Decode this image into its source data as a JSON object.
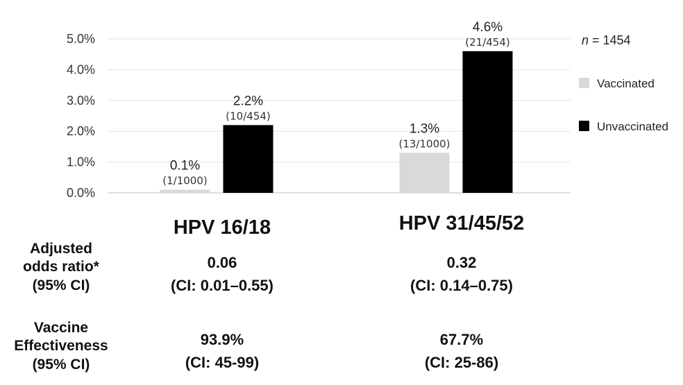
{
  "chart_data": {
    "type": "bar",
    "categories": [
      "HPV 16/18",
      "HPV 31/45/52"
    ],
    "series": [
      {
        "name": "Vaccinated",
        "color": "#d9d9d9",
        "values": [
          0.1,
          1.3
        ],
        "labels": [
          "0.1%",
          "1.3%"
        ],
        "fractions": [
          "(1/1000)",
          "(13/1000)"
        ]
      },
      {
        "name": "Unvaccinated",
        "color": "#000000",
        "values": [
          2.2,
          4.6
        ],
        "labels": [
          "2.2%",
          "4.6%"
        ],
        "fractions": [
          "(10/454)",
          "(21/454)"
        ]
      }
    ],
    "yticks": [
      "0.0%",
      "1.0%",
      "2.0%",
      "3.0%",
      "4.0%",
      "5.0%"
    ],
    "ylim": [
      0,
      5
    ],
    "legend_position": "right",
    "grid": true
  },
  "n_label": {
    "var": "n",
    "text": " = 1454"
  },
  "stats": {
    "row1_label": [
      "Adjusted",
      "odds ratio*",
      "(95% CI)"
    ],
    "row2_label": [
      "Vaccine",
      "Effectiveness",
      "(95% CI)"
    ],
    "values": [
      {
        "or": "0.06",
        "or_ci": "(CI: 0.01–0.55)",
        "ve": "93.9%",
        "ve_ci": "(CI: 45-99)"
      },
      {
        "or": "0.32",
        "or_ci": "(CI: 0.14–0.75)",
        "ve": "67.7%",
        "ve_ci": "(CI: 25-86)"
      }
    ]
  }
}
